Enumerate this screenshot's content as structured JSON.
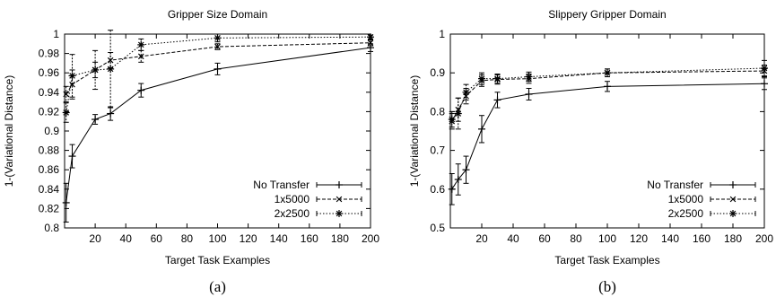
{
  "chart_data": [
    {
      "type": "line",
      "caption": "(a)",
      "title": "Gripper Size Domain",
      "xlabel": "Target Task Examples",
      "ylabel": "1-(Variational Distance)",
      "xlim": [
        0,
        200
      ],
      "ylim": [
        0.8,
        1.0
      ],
      "xticks": [
        20,
        40,
        60,
        80,
        100,
        120,
        140,
        160,
        180,
        200
      ],
      "yticks": [
        0.8,
        0.82,
        0.84,
        0.86,
        0.88,
        0.9,
        0.92,
        0.94,
        0.96,
        0.98,
        1
      ],
      "ytick_labels": [
        "0.8",
        "0.82",
        "0.84",
        "0.86",
        "0.88",
        "0.9",
        "0.92",
        "0.94",
        "0.96",
        "0.98",
        "1"
      ],
      "grid": false,
      "legend_position": "bottom-right",
      "series": [
        {
          "name": "No Transfer",
          "marker": "plus",
          "dash": "solid",
          "x": [
            1,
            5,
            20,
            30,
            50,
            100,
            200
          ],
          "y": [
            0.826,
            0.874,
            0.912,
            0.918,
            0.942,
            0.964,
            0.986
          ],
          "err": [
            0.02,
            0.012,
            0.005,
            0.007,
            0.007,
            0.006,
            0.004
          ]
        },
        {
          "name": "1x5000",
          "marker": "cross",
          "dash": "dashed",
          "x": [
            1,
            5,
            20,
            30,
            50,
            100,
            200
          ],
          "y": [
            0.938,
            0.948,
            0.963,
            0.973,
            0.977,
            0.987,
            0.991
          ],
          "err": [
            0.008,
            0.015,
            0.008,
            0.008,
            0.006,
            0.003,
            0.003
          ]
        },
        {
          "name": "2x2500",
          "marker": "star",
          "dash": "dotted",
          "x": [
            1,
            5,
            20,
            30,
            50,
            100,
            200
          ],
          "y": [
            0.919,
            0.957,
            0.963,
            0.964,
            0.989,
            0.996,
            0.997
          ],
          "err": [
            0.01,
            0.022,
            0.02,
            0.04,
            0.006,
            0.004,
            0.002
          ]
        }
      ]
    },
    {
      "type": "line",
      "caption": "(b)",
      "title": "Slippery Gripper Domain",
      "xlabel": "Target Task Examples",
      "ylabel": "1-(Variational Distance)",
      "xlim": [
        0,
        200
      ],
      "ylim": [
        0.5,
        1.0
      ],
      "xticks": [
        20,
        40,
        60,
        80,
        100,
        120,
        140,
        160,
        180,
        200
      ],
      "yticks": [
        0.5,
        0.6,
        0.7,
        0.8,
        0.9,
        1
      ],
      "ytick_labels": [
        "0.5",
        "0.6",
        "0.7",
        "0.8",
        "0.9",
        "1"
      ],
      "grid": false,
      "legend_position": "bottom-right",
      "series": [
        {
          "name": "No Transfer",
          "marker": "plus",
          "dash": "solid",
          "x": [
            1,
            5,
            10,
            20,
            30,
            50,
            100,
            200
          ],
          "y": [
            0.6,
            0.625,
            0.65,
            0.755,
            0.83,
            0.845,
            0.865,
            0.872
          ],
          "err": [
            0.04,
            0.04,
            0.035,
            0.035,
            0.02,
            0.015,
            0.013,
            0.015
          ]
        },
        {
          "name": "1x5000",
          "marker": "cross",
          "dash": "dashed",
          "x": [
            1,
            5,
            10,
            20,
            30,
            50,
            100,
            200
          ],
          "y": [
            0.775,
            0.805,
            0.84,
            0.88,
            0.883,
            0.885,
            0.9,
            0.905
          ],
          "err": [
            0.02,
            0.03,
            0.02,
            0.015,
            0.012,
            0.012,
            0.01,
            0.015
          ]
        },
        {
          "name": "2x2500",
          "marker": "star",
          "dash": "dotted",
          "x": [
            1,
            5,
            10,
            20,
            30,
            50,
            100,
            200
          ],
          "y": [
            0.78,
            0.795,
            0.85,
            0.885,
            0.885,
            0.89,
            0.9,
            0.912
          ],
          "err": [
            0.02,
            0.04,
            0.02,
            0.015,
            0.012,
            0.012,
            0.01,
            0.02
          ]
        }
      ]
    }
  ]
}
